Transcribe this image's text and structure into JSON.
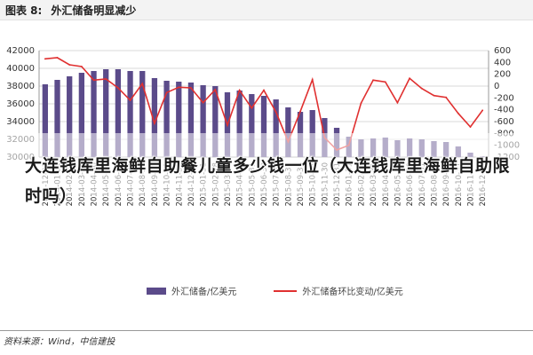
{
  "header": {
    "fig_no": "图表 8:",
    "fig_title": "外汇储备明显减少"
  },
  "overlay_title": "大连钱库里海鲜自助餐儿童多少钱一位（大连钱库里海鲜自助限时吗）",
  "legend": {
    "bar_label": "外汇储备/亿美元",
    "line_label": "外汇储备环比变动/亿美元"
  },
  "source": "资料来源：Wind，中信建投",
  "colors": {
    "bar": "#5b4b8a",
    "line": "#e03030",
    "grid": "#d9d9d9"
  },
  "chart_data": {
    "type": "bar+line",
    "categories": [
      "2013-12",
      "2014-01",
      "2014-02",
      "2014-03",
      "2014-04",
      "2014-05",
      "2014-06",
      "2014-07",
      "2014-08",
      "2014-09",
      "2014-10",
      "2014-11",
      "2014-12",
      "2015-01",
      "2015-02",
      "2015-03",
      "2015-04",
      "2015-05",
      "2015-06",
      "2015-07",
      "2015-08",
      "2015-09",
      "2015-10",
      "2015-11",
      "2015-12",
      "2016-01",
      "2016-02",
      "2016-03",
      "2016-04",
      "2016-05",
      "2016-06",
      "2016-07",
      "2016-08",
      "2016-09",
      "2016-10",
      "2016-11",
      "2016-12"
    ],
    "tick_labels": [
      "2013-12-31",
      "2014-01-31",
      "2014-02-28",
      "2014-03-31",
      "2014-04-30",
      "2014-05-31",
      "2014-06-30",
      "2014-07-31",
      "2014-08-31",
      "2014-09-30",
      "2014-10-31",
      "2014-11-30",
      "2014-12-31",
      "2015-01-31",
      "2015-02-28",
      "2015-03-31",
      "2015-04-30",
      "2015-05-31",
      "2015-06-30",
      "2015-07-31",
      "2015-08-31",
      "2015-09-30",
      "2015-10-31",
      "2015-11-30",
      "2015-12-31",
      "2016-01-31",
      "2016-02-29",
      "2016-03-31",
      "2016-04-30",
      "2016-05-31",
      "2016-06-30",
      "2016-07-31",
      "2016-08-31",
      "2016-09-30",
      "2016-10-31",
      "2016-11-30",
      "2016-12-31"
    ],
    "series": [
      {
        "name": "外汇储备/亿美元",
        "type": "bar",
        "axis": "left",
        "values": [
          38200,
          38700,
          39100,
          39500,
          39700,
          39900,
          39900,
          39700,
          39700,
          38900,
          38600,
          38500,
          38400,
          38100,
          38000,
          37300,
          37500,
          37100,
          36900,
          36500,
          35600,
          35100,
          35300,
          34400,
          33300,
          32300,
          32000,
          32100,
          32200,
          31900,
          32100,
          32000,
          31800,
          31700,
          31200,
          30500,
          30100
        ]
      },
      {
        "name": "外汇储备环比变动/亿美元",
        "type": "line",
        "axis": "right",
        "values": [
          460,
          480,
          360,
          330,
          100,
          120,
          -30,
          -240,
          40,
          -630,
          -110,
          -20,
          -30,
          -280,
          -60,
          -660,
          -70,
          -370,
          -70,
          -440,
          -940,
          -430,
          110,
          -870,
          -1080,
          -1000,
          -290,
          100,
          70,
          -280,
          130,
          -40,
          -160,
          -190,
          -460,
          -690,
          -410
        ]
      }
    ],
    "y_left": {
      "min": 30000,
      "max": 42000,
      "ticks": [
        30000,
        32000,
        34000,
        36000,
        38000,
        40000,
        42000
      ]
    },
    "y_right": {
      "min": -1200,
      "max": 600,
      "ticks": [
        -1200,
        -1000,
        -800,
        -600,
        -400,
        -200,
        0,
        200,
        400,
        600
      ]
    },
    "grid": true,
    "legend_position": "bottom"
  }
}
